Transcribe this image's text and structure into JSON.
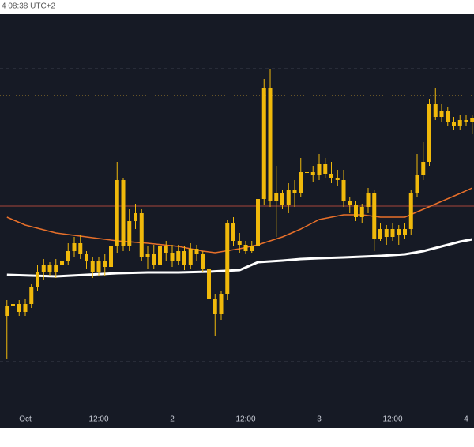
{
  "chart_data": {
    "type": "candlestick",
    "title": "4 08:38 UTC+2",
    "color": "#f0b90b",
    "x": [
      -3,
      -2,
      -1,
      0,
      1,
      2,
      3,
      4,
      5,
      6,
      7,
      8,
      9,
      10,
      11,
      12,
      13,
      14,
      15,
      16,
      17,
      18,
      19,
      20,
      21,
      22,
      23,
      24,
      25,
      26,
      27,
      28,
      29,
      30,
      31,
      32,
      33,
      34,
      35,
      36,
      37,
      38,
      39,
      40,
      41,
      42,
      43,
      44,
      45,
      46,
      47,
      48,
      49,
      50,
      51,
      52,
      53,
      54,
      55,
      56,
      57,
      58,
      59,
      60,
      61,
      62,
      63,
      64,
      65,
      66,
      67,
      68,
      69,
      70,
      71,
      72,
      73
    ],
    "open": [
      200,
      212,
      215,
      205,
      215,
      237,
      255,
      265,
      255,
      265,
      270,
      282,
      292,
      278,
      270,
      255,
      270,
      262,
      288,
      372,
      288,
      320,
      330,
      275,
      278,
      265,
      288,
      280,
      270,
      282,
      265,
      285,
      278,
      260,
      222,
      202,
      228,
      318,
      295,
      290,
      282,
      288,
      348,
      488,
      345,
      355,
      340,
      360,
      355,
      382,
      382,
      378,
      392,
      380,
      375,
      372,
      345,
      340,
      325,
      338,
      355,
      298,
      310,
      300,
      310,
      302,
      310,
      355,
      378,
      395,
      468,
      452,
      460,
      445,
      440,
      448,
      445
    ],
    "high": [
      220,
      222,
      220,
      222,
      240,
      265,
      272,
      268,
      272,
      278,
      292,
      300,
      302,
      282,
      275,
      275,
      278,
      295,
      395,
      375,
      335,
      342,
      335,
      288,
      290,
      295,
      295,
      290,
      290,
      288,
      292,
      290,
      282,
      265,
      228,
      232,
      322,
      325,
      305,
      295,
      295,
      355,
      500,
      512,
      390,
      360,
      368,
      372,
      400,
      392,
      390,
      405,
      400,
      395,
      385,
      385,
      350,
      345,
      342,
      362,
      360,
      318,
      315,
      318,
      315,
      318,
      360,
      405,
      420,
      475,
      488,
      468,
      465,
      452,
      455,
      455,
      455
    ],
    "low": [
      145,
      202,
      200,
      200,
      210,
      232,
      245,
      250,
      248,
      260,
      264,
      275,
      272,
      260,
      248,
      250,
      250,
      260,
      280,
      282,
      282,
      310,
      270,
      260,
      260,
      260,
      270,
      262,
      265,
      258,
      260,
      270,
      255,
      210,
      175,
      195,
      220,
      288,
      280,
      278,
      280,
      282,
      340,
      338,
      300,
      335,
      330,
      338,
      350,
      372,
      370,
      372,
      375,
      368,
      365,
      338,
      330,
      320,
      318,
      330,
      282,
      295,
      290,
      295,
      290,
      298,
      302,
      350,
      372,
      390,
      448,
      445,
      440,
      435,
      435,
      440,
      430
    ],
    "close": [
      212,
      215,
      205,
      215,
      237,
      255,
      265,
      255,
      265,
      270,
      282,
      292,
      278,
      270,
      255,
      270,
      262,
      288,
      372,
      288,
      320,
      330,
      275,
      278,
      265,
      288,
      280,
      270,
      282,
      265,
      285,
      278,
      260,
      222,
      202,
      228,
      318,
      295,
      290,
      282,
      288,
      348,
      488,
      345,
      355,
      340,
      360,
      355,
      382,
      382,
      378,
      392,
      380,
      375,
      372,
      345,
      340,
      325,
      338,
      355,
      298,
      310,
      300,
      310,
      302,
      310,
      355,
      378,
      395,
      468,
      452,
      460,
      445,
      440,
      448,
      445,
      450
    ],
    "overlays": [
      {
        "color": "#e8702a",
        "x": [
          -3,
          0,
          5,
          10,
          15,
          20,
          25,
          29,
          31,
          35,
          38,
          42,
          45,
          48,
          52,
          55,
          58,
          62,
          65,
          68,
          71,
          73
        ],
        "values": [
          325,
          315,
          305,
          300,
          295,
          292,
          288,
          282,
          280,
          285,
          290,
          300,
          310,
          322,
          328,
          328,
          325,
          325,
          335,
          345,
          355,
          362
        ]
      },
      {
        "color": "#ffffff",
        "x": [
          -3,
          5,
          10,
          15,
          20,
          25,
          30,
          35,
          38,
          42,
          45,
          48,
          52,
          55,
          58,
          62,
          65,
          68,
          71,
          73
        ],
        "values": [
          252,
          250,
          252,
          254,
          255,
          255,
          256,
          258,
          268,
          270,
          272,
          273,
          274,
          275,
          276,
          278,
          282,
          288,
          294,
          297
        ]
      }
    ],
    "hlines": [
      {
        "value": 513,
        "color": "#3a3f4c",
        "style": "dashed"
      },
      {
        "value": 479,
        "color": "#b8902a",
        "style": "dotted"
      },
      {
        "value": 339,
        "color": "#a8453a",
        "style": "solid"
      },
      {
        "value": 142,
        "color": "#3a3f4c",
        "style": "dashed"
      }
    ],
    "xlim": [
      -4.13,
      73.29
    ],
    "ylim": [
      83,
      582
    ],
    "xticks": [
      {
        "value": 0,
        "label": "Oct"
      },
      {
        "value": 12,
        "label": "12:00"
      },
      {
        "value": 24,
        "label": "2"
      },
      {
        "value": 36,
        "label": "12:00"
      },
      {
        "value": 48,
        "label": "3"
      },
      {
        "value": 60,
        "label": "12:00"
      },
      {
        "value": 72,
        "label": "4"
      }
    ]
  }
}
